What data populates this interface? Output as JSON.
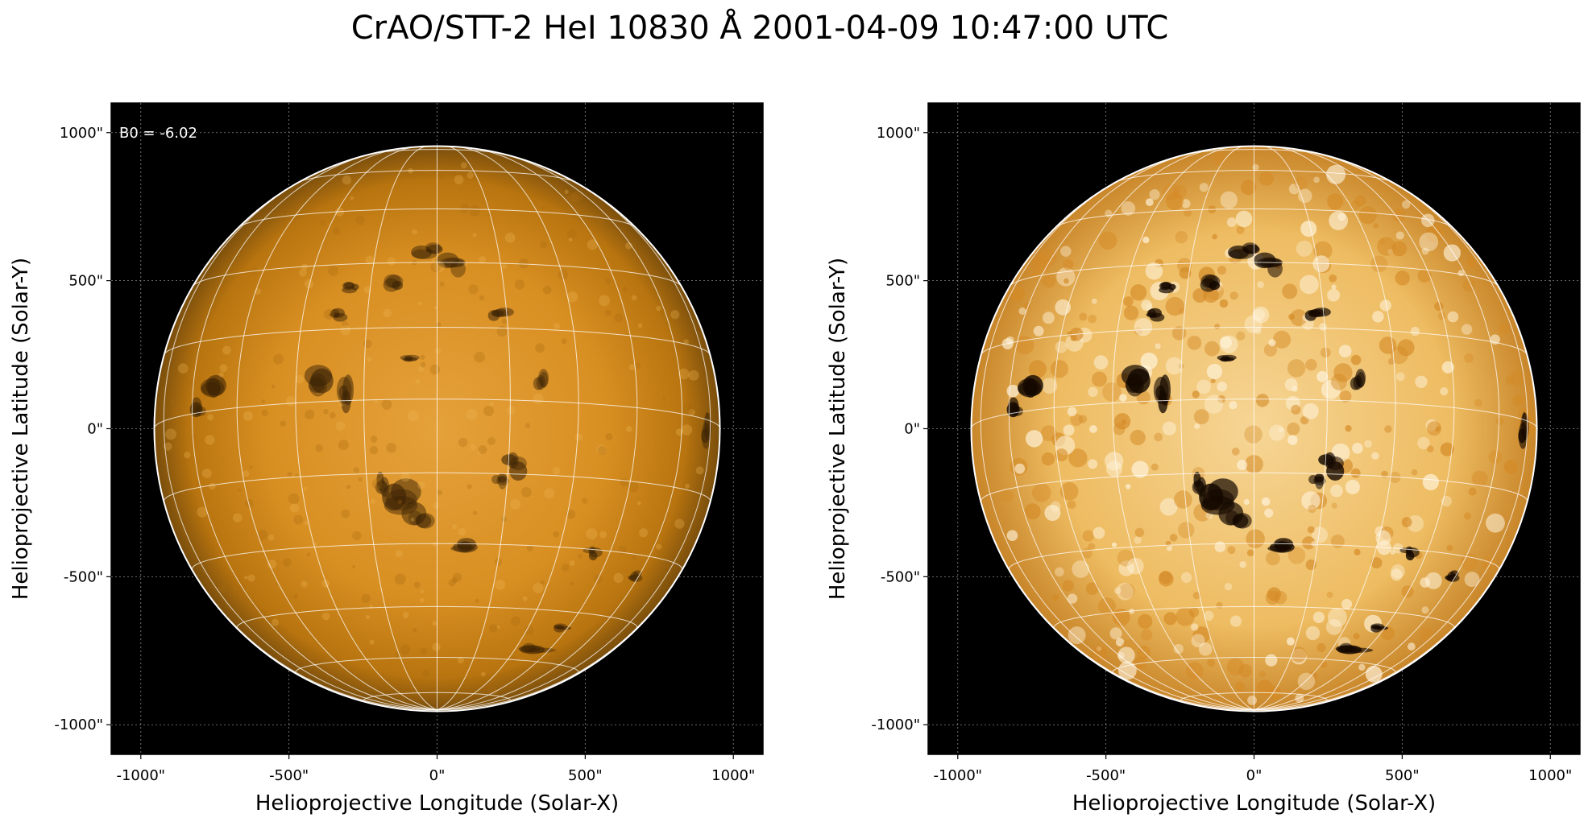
{
  "title": "CrAO/STT-2 HeI 10830 Å 2001-04-09 10:47:00 UTC",
  "axes": {
    "xlabel": "Helioprojective Longitude (Solar-X)",
    "ylabel": "Helioprojective Latitude (Solar-Y)",
    "xticks": [
      "-1000\"",
      "-500\"",
      "0\"",
      "500\"",
      "1000\""
    ],
    "yticks": [
      "1000\"",
      "500\"",
      "0\"",
      "-500\"",
      "-1000\""
    ],
    "tick_values": [
      -1000,
      -500,
      0,
      500,
      1000
    ],
    "range": [
      -1100,
      1100
    ]
  },
  "panels": [
    {
      "id": "left",
      "annotation": "B0 = -6.02",
      "contrast": "normal"
    },
    {
      "id": "right",
      "annotation": "",
      "contrast": "enhanced"
    }
  ],
  "solar_radius_arcsec": 955,
  "colors": {
    "background": "#000000",
    "disk_center": "#e8a438",
    "disk_limb": "#7a4e0c",
    "limb_circle": "#ffffff",
    "grid": "#ffffff"
  }
}
